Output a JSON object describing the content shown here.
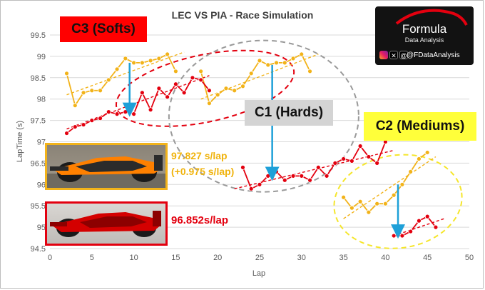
{
  "chart_data": {
    "type": "line",
    "title": "LEC VS PIA - Race Simulation",
    "xlabel": "Lap",
    "ylabel": "LapTime (s)",
    "xlim": [
      0,
      50
    ],
    "ylim": [
      94.5,
      99.5
    ],
    "x_ticks": [
      "0",
      "5",
      "10",
      "15",
      "20",
      "25",
      "30",
      "35",
      "40",
      "45",
      "50"
    ],
    "y_ticks": [
      "94.5",
      "95",
      "95.5",
      "96",
      "96.5",
      "97",
      "97.5",
      "98",
      "98.5",
      "99",
      "99.5"
    ],
    "grid": true,
    "series": [
      {
        "color": "#f2b31a",
        "stints": [
          {
            "x": [
              2,
              3,
              4,
              5,
              6,
              7,
              8,
              9,
              10,
              11,
              12,
              13,
              14,
              15
            ],
            "y": [
              98.6,
              97.85,
              98.15,
              98.2,
              98.2,
              98.45,
              98.7,
              98.95,
              98.85,
              98.85,
              98.9,
              98.95,
              99.05,
              98.65
            ]
          },
          {
            "x": [
              18,
              19,
              20,
              21,
              22,
              23,
              24,
              25,
              26,
              27,
              28,
              29,
              30,
              31
            ],
            "y": [
              98.65,
              97.9,
              98.1,
              98.25,
              98.2,
              98.3,
              98.6,
              98.9,
              98.8,
              98.85,
              98.85,
              98.95,
              99.05,
              98.65
            ]
          },
          {
            "x": [
              35,
              36,
              37,
              38,
              39,
              40,
              41,
              42,
              43,
              44,
              45
            ],
            "y": [
              95.7,
              95.45,
              95.6,
              95.35,
              95.55,
              95.55,
              95.75,
              96.0,
              96.3,
              96.6,
              96.75
            ]
          }
        ],
        "trends": [
          [
            [
              2,
              98.1
            ],
            [
              16,
              99.1
            ]
          ],
          [
            [
              18,
              98.0
            ],
            [
              32,
              99.05
            ]
          ],
          [
            [
              35,
              95.2
            ],
            [
              46,
              96.65
            ]
          ]
        ]
      },
      {
        "color": "#e3000f",
        "stints": [
          {
            "x": [
              2,
              3,
              4,
              5,
              6,
              7,
              8,
              9,
              10,
              11,
              12,
              13,
              14,
              15,
              16,
              17,
              18,
              19
            ],
            "y": [
              97.2,
              97.35,
              97.4,
              97.5,
              97.55,
              97.7,
              97.65,
              97.7,
              97.65,
              98.15,
              97.75,
              98.25,
              98.05,
              98.35,
              98.15,
              98.5,
              98.45,
              98.2
            ]
          },
          {
            "x": [
              23,
              24,
              25,
              26,
              27,
              28,
              29,
              30,
              31,
              32,
              33,
              34,
              35,
              36,
              37,
              38,
              39,
              40
            ],
            "y": [
              96.4,
              95.9,
              96.0,
              96.2,
              96.3,
              96.1,
              96.2,
              96.2,
              96.1,
              96.4,
              96.2,
              96.5,
              96.6,
              96.55,
              96.9,
              96.65,
              96.5,
              97.0
            ]
          },
          {
            "x": [
              41,
              42,
              43,
              44,
              45,
              46
            ],
            "y": [
              94.8,
              94.8,
              94.9,
              95.15,
              95.25,
              95.0
            ]
          }
        ],
        "trends": [
          [
            [
              2,
              97.3
            ],
            [
              19,
              98.55
            ]
          ],
          [
            [
              22,
              95.9
            ],
            [
              41,
              96.8
            ]
          ],
          [
            [
              41,
              94.8
            ],
            [
              47,
              95.2
            ]
          ]
        ]
      }
    ],
    "annotations": {
      "c3": "C3 (Softs)",
      "c1": "C1 (Hards)",
      "c2": "C2 (Mediums)",
      "pia_line1": "97.827 s/lap",
      "pia_line2": "(+0.975 s/lap)",
      "lec_value": "96.852s/lap"
    }
  },
  "logo": {
    "word": "Formula",
    "sub": "Data Analysis",
    "handle": "@FDataAnalysis"
  },
  "icons": [
    "instagram-icon",
    "x-icon",
    "threads-icon"
  ]
}
